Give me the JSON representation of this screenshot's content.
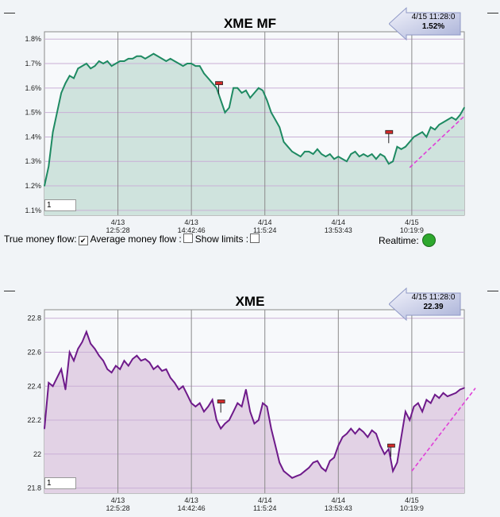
{
  "page": {
    "background": "#f1f4f7"
  },
  "controls": {
    "true_money_flow_label": "True money flow:",
    "true_money_flow_checked": true,
    "average_money_flow_label": "Average money flow :",
    "average_money_flow_checked": false,
    "show_limits_label": "Show limits :",
    "show_limits_checked": false,
    "realtime_label": "Realtime:",
    "realtime_status_color": "#2ea82e"
  },
  "charts": {
    "mf": {
      "title": "XME MF",
      "input_value": "1",
      "badge": {
        "time": "4/15 11:28:0",
        "value": "1.52%"
      }
    },
    "price": {
      "title": "XME",
      "input_value": "1",
      "badge": {
        "time": "4/15 11:28:0",
        "value": "22.39"
      }
    }
  },
  "chart_data": [
    {
      "type": "area",
      "title": "XME MF",
      "ylim": [
        1.08,
        1.83
      ],
      "yticks": [
        "1.1%",
        "1.2%",
        "1.3%",
        "1.4%",
        "1.5%",
        "1.6%",
        "1.7%",
        "1.8%"
      ],
      "ytick_values": [
        1.1,
        1.2,
        1.3,
        1.4,
        1.5,
        1.6,
        1.7,
        1.8
      ],
      "xticks": [
        [
          "4/13",
          "12:5:28"
        ],
        [
          "4/13",
          "14:42:46"
        ],
        [
          "4/14",
          "11:5:24"
        ],
        [
          "4/14",
          "13:53:43"
        ],
        [
          "4/15",
          "10:19:9"
        ]
      ],
      "xtick_values": [
        0.175,
        0.35,
        0.525,
        0.7,
        0.875
      ],
      "line_color": "#1e8a62",
      "fill_color": "#cfe3dd",
      "grid_color": "#c9b0d6",
      "trend_line": {
        "color": "#e03fd8",
        "from": [
          0.87,
          1.275
        ],
        "to": [
          1.0,
          1.485
        ]
      },
      "markers": [
        [
          0.415,
          1.62
        ],
        [
          0.82,
          1.42
        ]
      ],
      "series": [
        {
          "x": [
            0,
            0.01,
            0.02,
            0.03,
            0.04,
            0.05,
            0.06,
            0.07,
            0.08,
            0.09,
            0.1,
            0.11,
            0.12,
            0.13,
            0.14,
            0.15,
            0.16,
            0.17,
            0.18,
            0.19,
            0.2,
            0.21,
            0.22,
            0.23,
            0.24,
            0.25,
            0.26,
            0.27,
            0.28,
            0.29,
            0.3,
            0.31,
            0.32,
            0.33,
            0.34,
            0.35,
            0.36,
            0.37,
            0.38,
            0.39,
            0.4,
            0.41,
            0.42,
            0.43,
            0.44,
            0.45,
            0.46,
            0.47,
            0.48,
            0.49,
            0.5,
            0.51,
            0.52,
            0.53,
            0.54,
            0.55,
            0.56,
            0.57,
            0.58,
            0.59,
            0.6,
            0.61,
            0.62,
            0.63,
            0.64,
            0.65,
            0.66,
            0.67,
            0.68,
            0.69,
            0.7,
            0.71,
            0.72,
            0.73,
            0.74,
            0.75,
            0.76,
            0.77,
            0.78,
            0.79,
            0.8,
            0.81,
            0.82,
            0.83,
            0.84,
            0.85,
            0.86,
            0.87,
            0.88,
            0.89,
            0.9,
            0.91,
            0.92,
            0.93,
            0.94,
            0.95,
            0.96,
            0.97,
            0.98,
            0.99,
            1.0
          ],
          "values": [
            1.2,
            1.28,
            1.42,
            1.5,
            1.58,
            1.62,
            1.65,
            1.64,
            1.68,
            1.69,
            1.7,
            1.68,
            1.69,
            1.71,
            1.7,
            1.71,
            1.69,
            1.7,
            1.71,
            1.71,
            1.72,
            1.72,
            1.73,
            1.73,
            1.72,
            1.73,
            1.74,
            1.73,
            1.72,
            1.71,
            1.72,
            1.71,
            1.7,
            1.69,
            1.7,
            1.7,
            1.69,
            1.69,
            1.66,
            1.64,
            1.62,
            1.6,
            1.55,
            1.5,
            1.52,
            1.6,
            1.6,
            1.58,
            1.59,
            1.56,
            1.58,
            1.6,
            1.59,
            1.55,
            1.5,
            1.47,
            1.44,
            1.38,
            1.36,
            1.34,
            1.33,
            1.32,
            1.34,
            1.34,
            1.33,
            1.35,
            1.33,
            1.32,
            1.33,
            1.31,
            1.32,
            1.31,
            1.3,
            1.33,
            1.34,
            1.32,
            1.33,
            1.32,
            1.33,
            1.31,
            1.33,
            1.32,
            1.29,
            1.3,
            1.36,
            1.35,
            1.36,
            1.38,
            1.4,
            1.41,
            1.42,
            1.4,
            1.44,
            1.43,
            1.45,
            1.46,
            1.47,
            1.48,
            1.47,
            1.49,
            1.52
          ]
        }
      ]
    },
    {
      "type": "area",
      "title": "XME",
      "ylim": [
        21.77,
        22.85
      ],
      "yticks": [
        "21.8",
        "22",
        "22.2",
        "22.4",
        "22.6",
        "22.8"
      ],
      "ytick_values": [
        21.8,
        22.0,
        22.2,
        22.4,
        22.6,
        22.8
      ],
      "xticks": [
        [
          "4/13",
          "12:5:28"
        ],
        [
          "4/13",
          "14:42:46"
        ],
        [
          "4/14",
          "11:5:24"
        ],
        [
          "4/14",
          "13:53:43"
        ],
        [
          "4/15",
          "10:19:9"
        ]
      ],
      "xtick_values": [
        0.175,
        0.35,
        0.525,
        0.7,
        0.875
      ],
      "line_color": "#6e1a8a",
      "fill_color": "#e2d2e5",
      "grid_color": "#c9b0d6",
      "trend_line": {
        "color": "#e03fd8",
        "from": [
          0.875,
          21.9
        ],
        "to": [
          1.03,
          22.4
        ]
      },
      "markers": [
        [
          0.42,
          22.31
        ],
        [
          0.825,
          22.05
        ]
      ],
      "series": [
        {
          "x": [
            0,
            0.01,
            0.02,
            0.03,
            0.04,
            0.05,
            0.06,
            0.07,
            0.08,
            0.09,
            0.1,
            0.11,
            0.12,
            0.13,
            0.14,
            0.15,
            0.16,
            0.17,
            0.18,
            0.19,
            0.2,
            0.21,
            0.22,
            0.23,
            0.24,
            0.25,
            0.26,
            0.27,
            0.28,
            0.29,
            0.3,
            0.31,
            0.32,
            0.33,
            0.34,
            0.35,
            0.36,
            0.37,
            0.38,
            0.39,
            0.4,
            0.41,
            0.42,
            0.43,
            0.44,
            0.45,
            0.46,
            0.47,
            0.48,
            0.49,
            0.5,
            0.51,
            0.52,
            0.53,
            0.54,
            0.55,
            0.56,
            0.57,
            0.58,
            0.59,
            0.6,
            0.61,
            0.62,
            0.63,
            0.64,
            0.65,
            0.66,
            0.67,
            0.68,
            0.69,
            0.7,
            0.71,
            0.72,
            0.73,
            0.74,
            0.75,
            0.76,
            0.77,
            0.78,
            0.79,
            0.8,
            0.81,
            0.82,
            0.83,
            0.84,
            0.85,
            0.86,
            0.87,
            0.88,
            0.89,
            0.9,
            0.91,
            0.92,
            0.93,
            0.94,
            0.95,
            0.96,
            0.97,
            0.98,
            0.99,
            1.0
          ],
          "values": [
            22.15,
            22.42,
            22.4,
            22.45,
            22.5,
            22.38,
            22.6,
            22.55,
            22.62,
            22.66,
            22.72,
            22.65,
            22.62,
            22.58,
            22.55,
            22.5,
            22.48,
            22.52,
            22.5,
            22.55,
            22.52,
            22.56,
            22.58,
            22.55,
            22.56,
            22.54,
            22.5,
            22.52,
            22.49,
            22.5,
            22.45,
            22.42,
            22.38,
            22.4,
            22.35,
            22.3,
            22.28,
            22.3,
            22.25,
            22.28,
            22.32,
            22.2,
            22.15,
            22.18,
            22.2,
            22.25,
            22.3,
            22.28,
            22.38,
            22.25,
            22.18,
            22.2,
            22.3,
            22.28,
            22.15,
            22.05,
            21.95,
            21.9,
            21.88,
            21.86,
            21.87,
            21.88,
            21.9,
            21.92,
            21.95,
            21.96,
            21.92,
            21.9,
            21.96,
            21.98,
            22.05,
            22.1,
            22.12,
            22.15,
            22.12,
            22.15,
            22.13,
            22.1,
            22.14,
            22.12,
            22.05,
            22.0,
            22.03,
            21.9,
            21.95,
            22.1,
            22.25,
            22.2,
            22.28,
            22.3,
            22.25,
            22.32,
            22.3,
            22.35,
            22.33,
            22.36,
            22.34,
            22.35,
            22.36,
            22.38,
            22.39
          ]
        }
      ]
    }
  ]
}
